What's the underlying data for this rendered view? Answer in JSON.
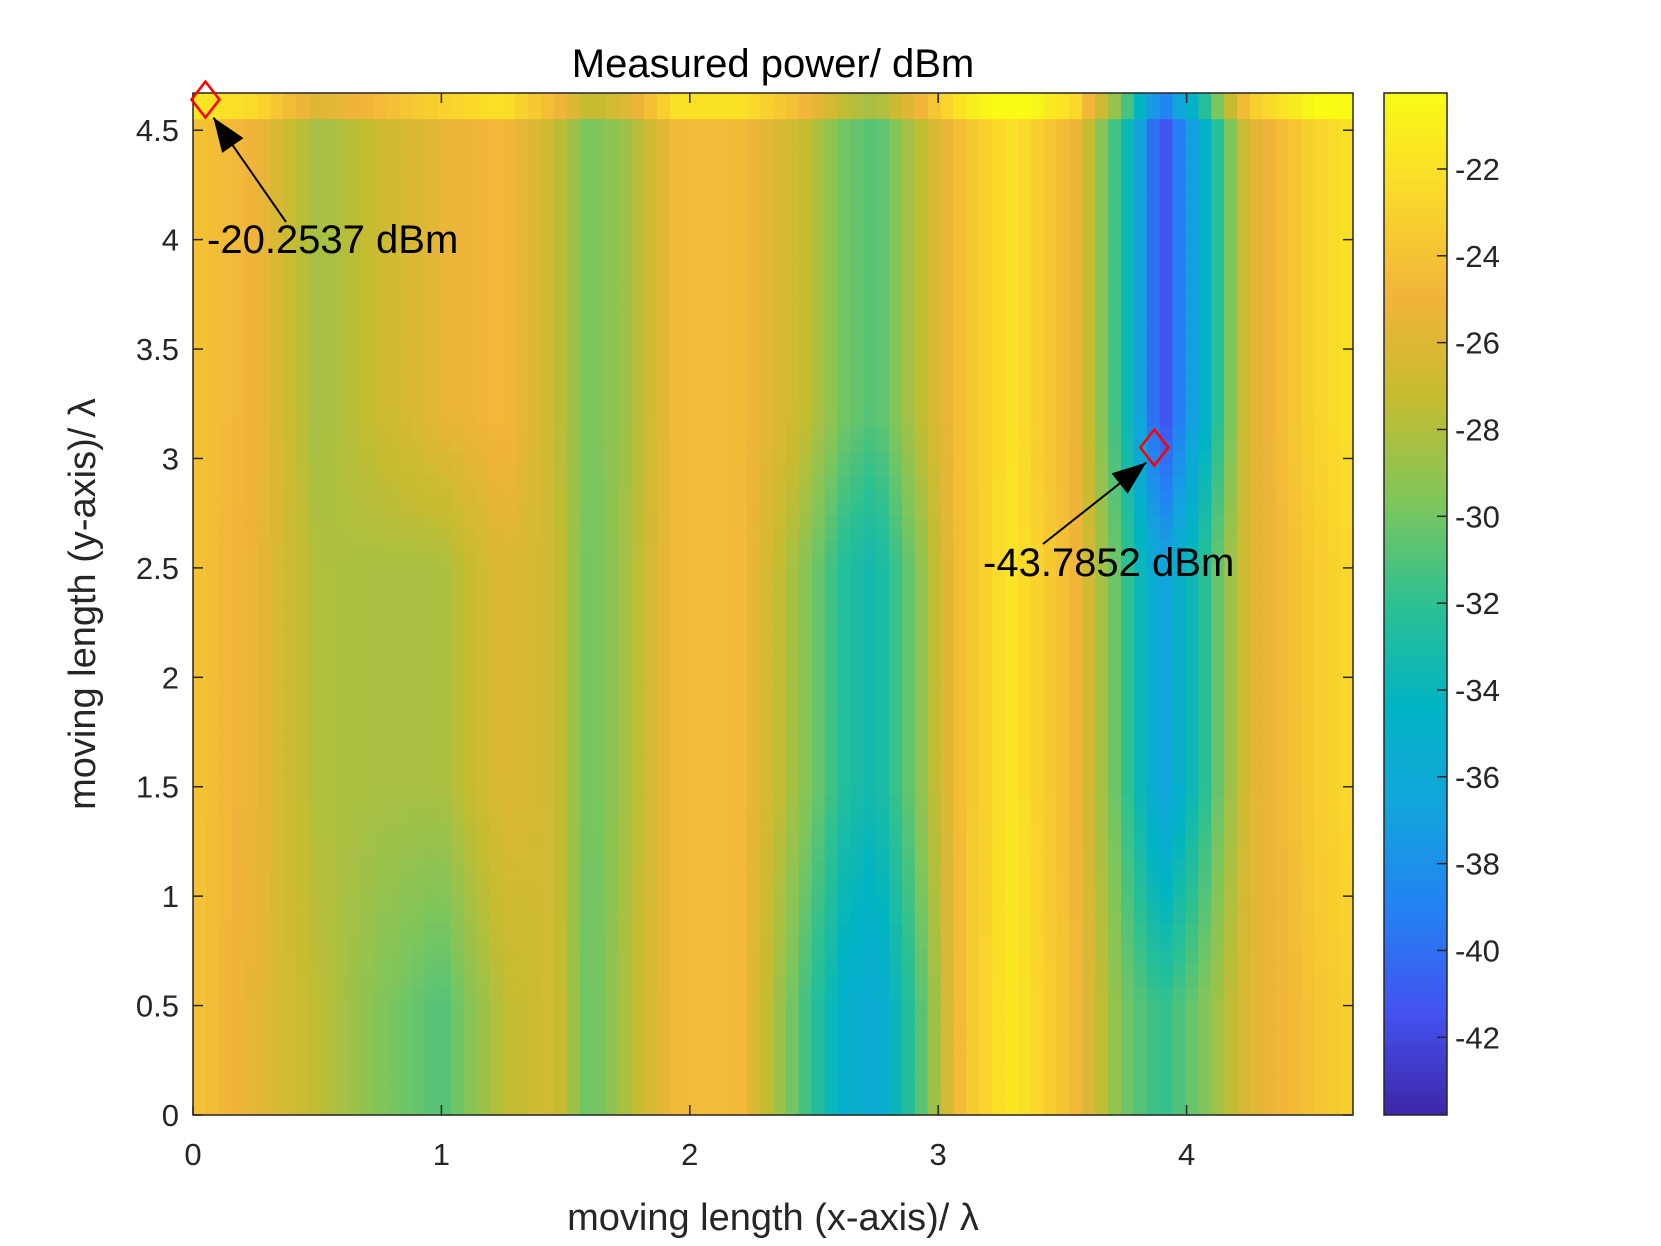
{
  "chart_data": {
    "type": "heatmap",
    "title": "Measured power/ dBm",
    "xlabel": "moving length (x-axis)/ λ",
    "ylabel": "moving length (y-axis)/ λ",
    "xlim": [
      0,
      4.67
    ],
    "ylim": [
      0,
      4.67
    ],
    "x_ticks": [
      0,
      1,
      2,
      3,
      4
    ],
    "y_ticks": [
      0,
      0.5,
      1,
      1.5,
      2,
      2.5,
      3,
      3.5,
      4,
      4.5
    ],
    "colorbar": {
      "range": [
        -43.79,
        -20.25
      ],
      "ticks": [
        -22,
        -24,
        -26,
        -28,
        -30,
        -32,
        -34,
        -36,
        -38,
        -40,
        -42
      ],
      "colormap": "parula",
      "colors": [
        "#3e26a8",
        "#4352ef",
        "#2481f4",
        "#12a4dc",
        "#01b4c3",
        "#2cc092",
        "#7fc65c",
        "#c4bc31",
        "#f1b43a",
        "#fad82b",
        "#f9fb15"
      ]
    },
    "column_profile": {
      "x": [
        0,
        0.25,
        0.5,
        0.75,
        1.0,
        1.25,
        1.45,
        1.6,
        1.75,
        1.95,
        2.2,
        2.45,
        2.62,
        2.75,
        2.9,
        3.1,
        3.3,
        3.55,
        3.75,
        3.9,
        4.05,
        4.25,
        4.5,
        4.67
      ],
      "top_dbm": [
        -24,
        -25,
        -28.5,
        -27,
        -25.5,
        -24.5,
        -27,
        -30,
        -28.5,
        -24.5,
        -24.5,
        -27,
        -30,
        -31,
        -28,
        -24,
        -22,
        -25,
        -33,
        -42,
        -36,
        -26,
        -23,
        -22
      ],
      "bottom_dbm": [
        -24,
        -25.5,
        -27.5,
        -29.5,
        -31,
        -27.5,
        -26.5,
        -30.5,
        -28,
        -24.5,
        -24.5,
        -31,
        -35,
        -36,
        -32,
        -24,
        -21.5,
        -24.5,
        -30,
        -32,
        -30,
        -26,
        -24,
        -23
      ]
    },
    "y_profile_change": [
      0.5,
      1.5,
      2.5,
      3.2
    ],
    "annotations": [
      {
        "text": "-20.2537 dBm",
        "x": 0.05,
        "y": 4.64,
        "value": -20.2537,
        "marker": "diamond"
      },
      {
        "text": "-43.7852 dBm",
        "x": 3.87,
        "y": 3.05,
        "value": -43.7852,
        "marker": "diamond"
      }
    ]
  }
}
